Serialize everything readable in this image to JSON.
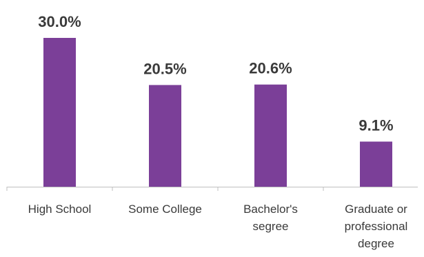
{
  "chart_data": {
    "type": "bar",
    "categories": [
      [
        "High School"
      ],
      [
        "Some College"
      ],
      [
        "Bachelor's",
        "segree"
      ],
      [
        "Graduate or",
        "professional",
        "degree"
      ]
    ],
    "values": [
      30.0,
      20.5,
      20.6,
      9.1
    ],
    "value_labels": [
      "30.0%",
      "20.5%",
      "20.6%",
      "9.1%"
    ],
    "title": "",
    "xlabel": "",
    "ylabel": "",
    "ylim": [
      0,
      30
    ],
    "grid": false,
    "legend": "none",
    "colors": {
      "bar": "#7B3F98",
      "text": "#3a3a3a",
      "axis": "#bfbfbf"
    }
  }
}
